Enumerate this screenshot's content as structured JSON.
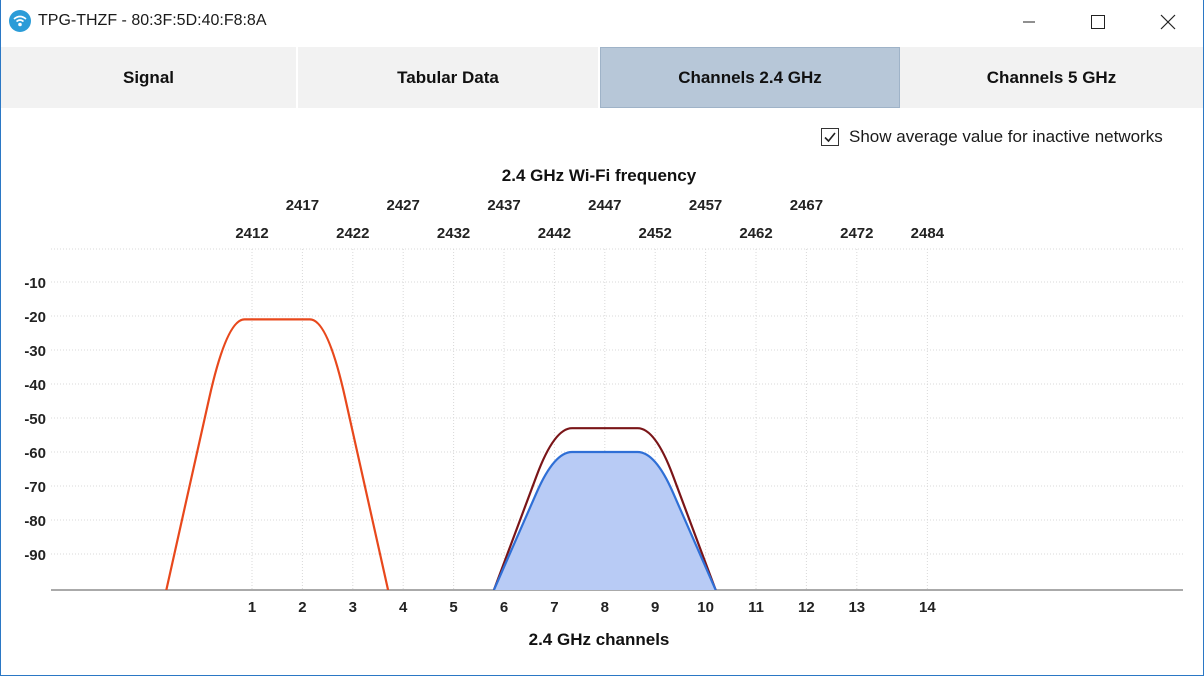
{
  "window": {
    "title": "TPG-THZF - 80:3F:5D:40:F8:8A",
    "icon": "wifi-app-icon",
    "controls": [
      "minimize-icon",
      "maximize-icon",
      "close-icon"
    ]
  },
  "tabs": [
    {
      "label": "Signal",
      "active": false
    },
    {
      "label": "Tabular Data",
      "active": false
    },
    {
      "label": "Channels 2.4 GHz",
      "active": true
    },
    {
      "label": "Channels 5 GHz",
      "active": false
    }
  ],
  "options": {
    "show_average_label": "Show average value for inactive networks",
    "show_average_checked": true
  },
  "colors": {
    "active_tab": "#b7c7d8",
    "network_orange": "#e8481c",
    "network_darkred": "#7a1518",
    "network_blue": "#2f6fd6",
    "network_blue_fill": "#b8cbf5"
  },
  "chart_data": {
    "type": "area",
    "title": "2.4 GHz Wi-Fi frequency",
    "xlabel": "2.4 GHz channels",
    "ylabel": "",
    "ylim": [
      -100,
      -2
    ],
    "y_ticks": [
      -10,
      -20,
      -30,
      -40,
      -50,
      -60,
      -70,
      -80,
      -90
    ],
    "grid": true,
    "top_ticks_row1": [
      {
        "label": "2417",
        "channel": 2
      },
      {
        "label": "2427",
        "channel": 4
      },
      {
        "label": "2437",
        "channel": 6
      },
      {
        "label": "2447",
        "channel": 8
      },
      {
        "label": "2457",
        "channel": 10
      },
      {
        "label": "2467",
        "channel": 12
      }
    ],
    "top_ticks_row2": [
      {
        "label": "2412",
        "channel": 1
      },
      {
        "label": "2422",
        "channel": 3
      },
      {
        "label": "2432",
        "channel": 5
      },
      {
        "label": "2442",
        "channel": 7
      },
      {
        "label": "2452",
        "channel": 9
      },
      {
        "label": "2462",
        "channel": 11
      },
      {
        "label": "2472",
        "channel": 13
      },
      {
        "label": "2484",
        "channel": 14.4
      }
    ],
    "bottom_ticks": [
      {
        "label": "1",
        "channel": 1
      },
      {
        "label": "2",
        "channel": 2
      },
      {
        "label": "3",
        "channel": 3
      },
      {
        "label": "4",
        "channel": 4
      },
      {
        "label": "5",
        "channel": 5
      },
      {
        "label": "6",
        "channel": 6
      },
      {
        "label": "7",
        "channel": 7
      },
      {
        "label": "8",
        "channel": 8
      },
      {
        "label": "9",
        "channel": 9
      },
      {
        "label": "10",
        "channel": 10
      },
      {
        "label": "11",
        "channel": 11
      },
      {
        "label": "12",
        "channel": 12
      },
      {
        "label": "13",
        "channel": 13
      },
      {
        "label": "14",
        "channel": 14.4
      }
    ],
    "series": [
      {
        "center_channel": 1.5,
        "level": -21,
        "style": "outline",
        "color": "#e8481c"
      },
      {
        "center_channel": 8,
        "level": -53,
        "style": "outline",
        "color": "#7a1518"
      },
      {
        "center_channel": 8,
        "level": -60,
        "style": "filled",
        "color": "#2f6fd6",
        "fill": "#b8cbf5"
      }
    ]
  }
}
